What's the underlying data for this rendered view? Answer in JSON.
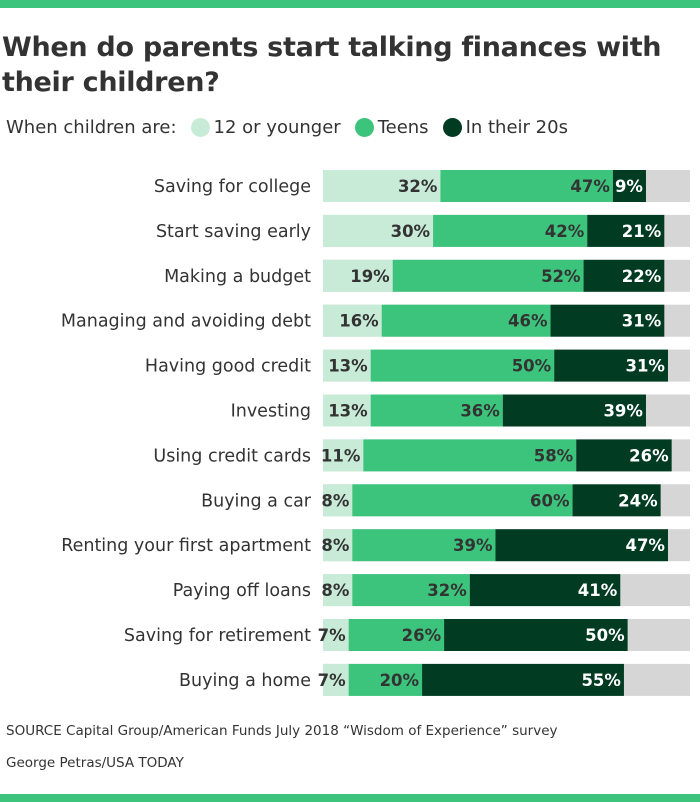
{
  "title": "When do parents start talking finances with their children?",
  "legend": {
    "prefix": "When children are:",
    "items": [
      "12 or younger",
      "Teens",
      "In their 20s"
    ]
  },
  "colors": {
    "young": "#c8ebd8",
    "teens": "#3cc47c",
    "twenties": "#003b22",
    "rest": "#d6d6d6",
    "band": "#3cc47c"
  },
  "chart_data": {
    "type": "bar",
    "orientation": "horizontal-stacked",
    "title": "When do parents start talking finances with their children?",
    "xlim": [
      0,
      100
    ],
    "categories": [
      "Saving for college",
      "Start saving early",
      "Making a budget",
      "Managing and avoiding debt",
      "Having good credit",
      "Investing",
      "Using credit cards",
      "Buying a car",
      "Renting your first apartment",
      "Paying off loans",
      "Saving for retirement",
      "Buying a home"
    ],
    "series": [
      {
        "name": "12 or younger",
        "values": [
          32,
          30,
          19,
          16,
          13,
          13,
          11,
          8,
          8,
          8,
          7,
          7
        ]
      },
      {
        "name": "Teens",
        "values": [
          47,
          42,
          52,
          46,
          50,
          36,
          58,
          60,
          39,
          32,
          26,
          20
        ]
      },
      {
        "name": "In their 20s",
        "values": [
          9,
          21,
          22,
          31,
          31,
          39,
          26,
          24,
          47,
          41,
          50,
          55
        ]
      }
    ]
  },
  "footer": {
    "source": "SOURCE Capital Group/American Funds July 2018 “Wisdom of Experience” survey",
    "credit": "George Petras/USA TODAY"
  }
}
